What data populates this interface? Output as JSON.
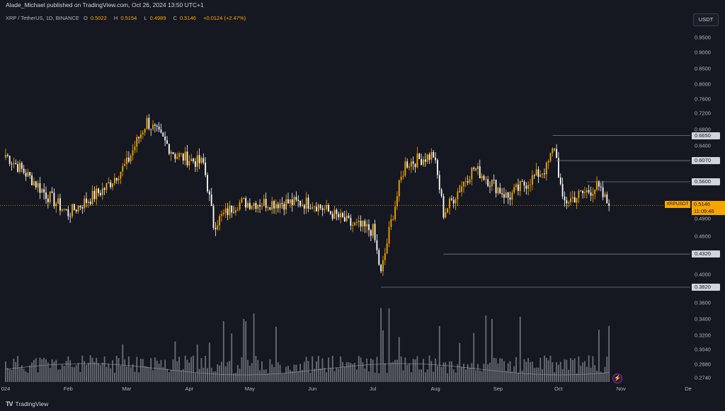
{
  "publisher_line": "Alade_Michael published on TradingView.com, Oct 26, 2024 13:50 UTC+1",
  "symbol_line": {
    "symbol": "XRP / TetherUS, 1D, BINANCE",
    "open_label": "O",
    "open": "0.5022",
    "high_label": "H",
    "high": "0.5154",
    "low_label": "L",
    "low": "0.4989",
    "close_label": "C",
    "close": "0.5146",
    "change": "+0.0124 (+2.47%)"
  },
  "currency_button": "USDT",
  "price_axis": {
    "ticks": [
      "0.9500",
      "0.9000",
      "0.8500",
      "0.8000",
      "0.7600",
      "0.7200",
      "0.6800",
      "0.6400",
      "0.5600",
      "0.4900",
      "0.4600",
      "0.4000",
      "0.3600",
      "0.3400",
      "0.3200",
      "0.3040",
      "0.2880",
      "0.2740"
    ],
    "levels": [
      "0.6650",
      "0.6070",
      "0.5600",
      "0.4320",
      "0.3820"
    ]
  },
  "last_price": {
    "symbol": "XRPUSDT",
    "price": "0.5146",
    "countdown": "11:09:46"
  },
  "time_axis": [
    "024",
    "Feb",
    "Mar",
    "Apr",
    "May",
    "Jun",
    "Jul",
    "Aug",
    "Sep",
    "Oct",
    "Nov",
    "De"
  ],
  "footer_brand": "TradingView",
  "colors": {
    "up": "#f7a600",
    "down": "#ffffff",
    "background": "#161821",
    "level_line": "#787b86",
    "volume": "#b2b5be"
  },
  "chart_data": {
    "type": "candlestick",
    "title": "XRP / TetherUS, 1D, BINANCE",
    "ylim": [
      0.27,
      0.99
    ],
    "y_scale": "log",
    "grid": false,
    "key_points": [
      {
        "x": "2024-01-01",
        "close": 0.62
      },
      {
        "x": "2024-01-20",
        "close": 0.54
      },
      {
        "x": "2024-02-01",
        "close": 0.5
      },
      {
        "x": "2024-02-20",
        "close": 0.55
      },
      {
        "x": "2024-03-01",
        "close": 0.6
      },
      {
        "x": "2024-03-11",
        "close": 0.7
      },
      {
        "x": "2024-03-25",
        "close": 0.62
      },
      {
        "x": "2024-04-08",
        "close": 0.6
      },
      {
        "x": "2024-04-13",
        "close": 0.48
      },
      {
        "x": "2024-04-25",
        "close": 0.52
      },
      {
        "x": "2024-05-15",
        "close": 0.52
      },
      {
        "x": "2024-06-01",
        "close": 0.52
      },
      {
        "x": "2024-06-20",
        "close": 0.48
      },
      {
        "x": "2024-07-01",
        "close": 0.47
      },
      {
        "x": "2024-07-05",
        "close": 0.4
      },
      {
        "x": "2024-07-17",
        "close": 0.6
      },
      {
        "x": "2024-07-31",
        "close": 0.62
      },
      {
        "x": "2024-08-05",
        "close": 0.5
      },
      {
        "x": "2024-08-20",
        "close": 0.59
      },
      {
        "x": "2024-09-06",
        "close": 0.53
      },
      {
        "x": "2024-09-25",
        "close": 0.59
      },
      {
        "x": "2024-09-29",
        "close": 0.64
      },
      {
        "x": "2024-10-03",
        "close": 0.52
      },
      {
        "x": "2024-10-20",
        "close": 0.55
      },
      {
        "x": "2024-10-26",
        "close": 0.5146
      }
    ],
    "levels": [
      0.665,
      0.607,
      0.56,
      0.432,
      0.382
    ]
  }
}
